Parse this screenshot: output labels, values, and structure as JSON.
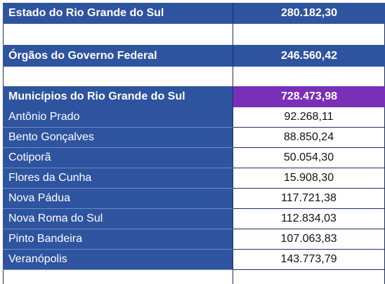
{
  "rows": {
    "estado": {
      "label": "Estado do Rio Grande do Sul",
      "value": "280.182,30"
    },
    "orgaos": {
      "label": "Órgãos do Governo Federal",
      "value": "246.560,42"
    },
    "municipios": {
      "label": "Municípios do Rio Grande do Sul",
      "value": "728.473,98"
    }
  },
  "municipalities": [
    {
      "name": "Antônio Prado",
      "value": "92.268,11"
    },
    {
      "name": "Bento Gonçalves",
      "value": "88.850,24"
    },
    {
      "name": "Cotiporã",
      "value": "50.054,30"
    },
    {
      "name": "Flores da Cunha",
      "value": "15.908,30"
    },
    {
      "name": "Nova Pádua",
      "value": "117.721,38"
    },
    {
      "name": "Nova Roma do Sul",
      "value": "112.834,03"
    },
    {
      "name": "Pinto Bandeira",
      "value": "107.063,83"
    },
    {
      "name": "Veranópolis",
      "value": "143.773,79"
    }
  ],
  "colors": {
    "header_blue": "#2e54a0",
    "highlight_purple": "#7a2fb8",
    "border": "#1b2f5e"
  }
}
